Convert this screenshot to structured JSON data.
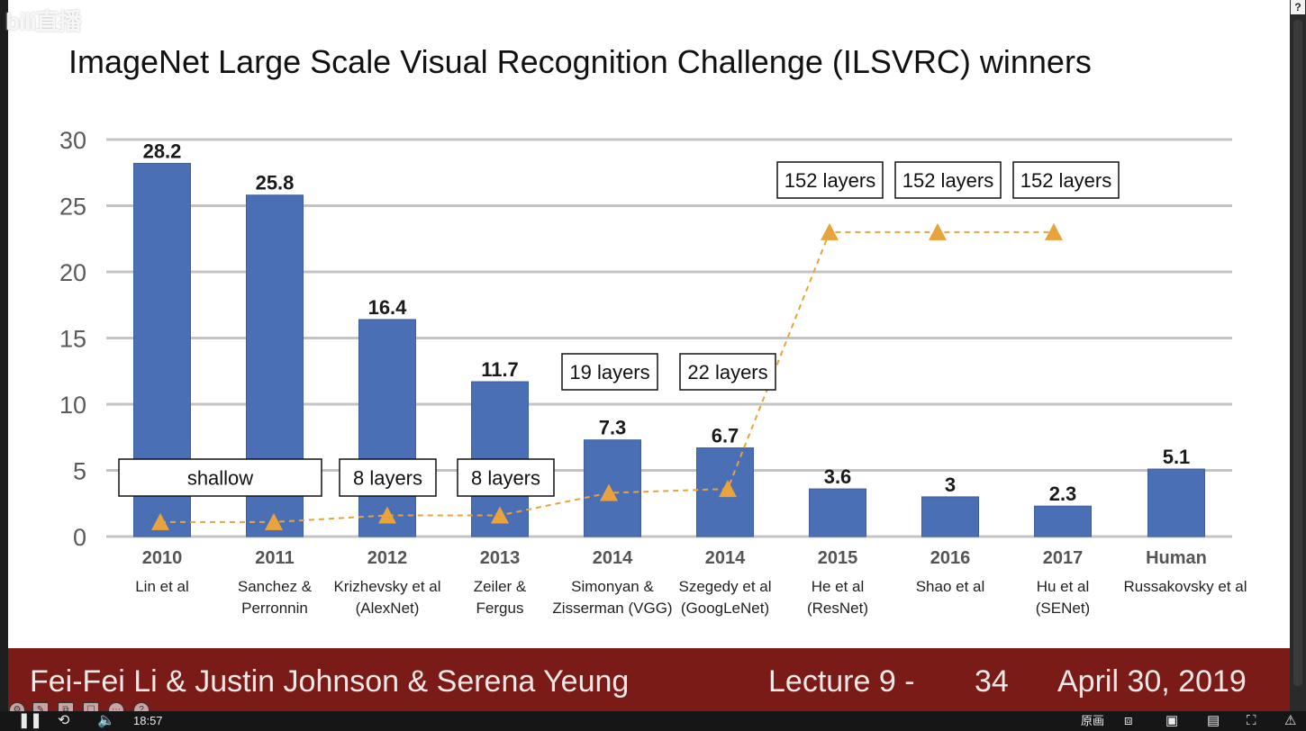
{
  "watermark": "bili直播",
  "help_glyph": "?",
  "slide": {
    "title": "ImageNet Large Scale Visual Recognition Challenge (ILSVRC) winners",
    "footer": {
      "authors": "Fei-Fei Li & Justin Johnson & Serena Yeung",
      "lecture": "Lecture 9 -",
      "page": "34",
      "date": "April 30, 2019"
    }
  },
  "chart_data": {
    "type": "bar",
    "title": "",
    "xlabel": "",
    "ylabel": "",
    "ylim": [
      0,
      30
    ],
    "yticks": [
      0,
      5,
      10,
      15,
      20,
      25,
      30
    ],
    "grid": true,
    "bar_color": "#4a6fb5",
    "line_color": "#e8a33d",
    "categories": [
      "2010",
      "2011",
      "2012",
      "2013",
      "2014",
      "2014",
      "2015",
      "2016",
      "2017",
      "Human"
    ],
    "authors": [
      [
        "Lin et al"
      ],
      [
        "Sanchez &",
        "Perronnin"
      ],
      [
        "Krizhevsky et al",
        "(AlexNet)"
      ],
      [
        "Zeiler &",
        "Fergus"
      ],
      [
        "Simonyan &",
        "Zisserman (VGG)"
      ],
      [
        "Szegedy et al",
        "(GoogLeNet)"
      ],
      [
        "He et al",
        "(ResNet)"
      ],
      [
        "Shao et al"
      ],
      [
        "Hu et al",
        "(SENet)"
      ],
      [
        "Russakovsky et al"
      ]
    ],
    "values": [
      28.2,
      25.8,
      16.4,
      11.7,
      7.3,
      6.7,
      3.6,
      3,
      2.3,
      5.1
    ],
    "value_labels": [
      "28.2",
      "25.8",
      "16.4",
      "11.7",
      "7.3",
      "6.7",
      "3.6",
      "3",
      "2.3",
      "5.1"
    ],
    "depth_markers": [
      1.1,
      1.1,
      1.6,
      1.6,
      3.3,
      3.6,
      23,
      23,
      23
    ],
    "depth_labels": [
      "shallow",
      "8 layers",
      "8 layers",
      "19 layers",
      "22 layers",
      "152 layers",
      "152 layers",
      "152 layers"
    ]
  },
  "player": {
    "time": "18:57",
    "quality": "原画",
    "toolbar_icons": [
      "settings-icon",
      "pen-icon",
      "crop-icon",
      "box-icon",
      "more-icon",
      "help-icon"
    ]
  }
}
